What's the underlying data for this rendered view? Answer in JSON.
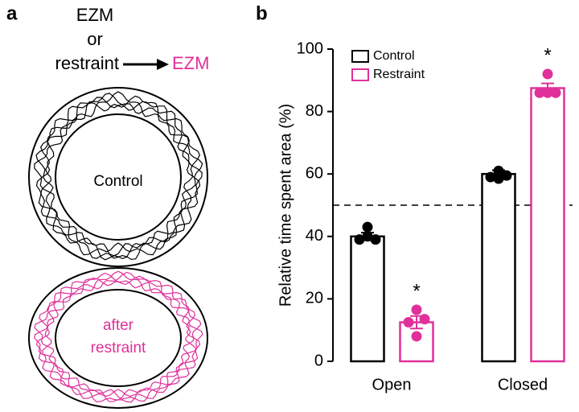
{
  "panel_a": {
    "label": "a",
    "line1": "EZM",
    "line2": "or",
    "line3_left": "restraint",
    "line3_right": "EZM",
    "circle_top_label": "Control",
    "circle_bottom_label": [
      "after",
      "restraint"
    ]
  },
  "chart_data": {
    "type": "bar",
    "panel_label": "b",
    "ylabel": "Relative time spent area (%)",
    "categories": [
      "Open",
      "Closed"
    ],
    "series": [
      {
        "name": "Control",
        "color": "#000000",
        "values": [
          40,
          60
        ],
        "errors": [
          1.2,
          1.2
        ],
        "points": [
          [
            43,
            39,
            40,
            39
          ],
          [
            61,
            59,
            58.5,
            59.5
          ]
        ]
      },
      {
        "name": "Restraint",
        "color": "#e0309a",
        "values": [
          12.5,
          87.5
        ],
        "errors": [
          2,
          1.5
        ],
        "points": [
          [
            16.5,
            12.5,
            8,
            13.5
          ],
          [
            92,
            86,
            86,
            86
          ]
        ],
        "annotations": [
          "*",
          "*"
        ]
      }
    ],
    "ylim": [
      0,
      100
    ],
    "yticks": [
      0,
      20,
      40,
      60,
      80,
      100
    ],
    "reference_line": 50,
    "legend": "upper left"
  }
}
